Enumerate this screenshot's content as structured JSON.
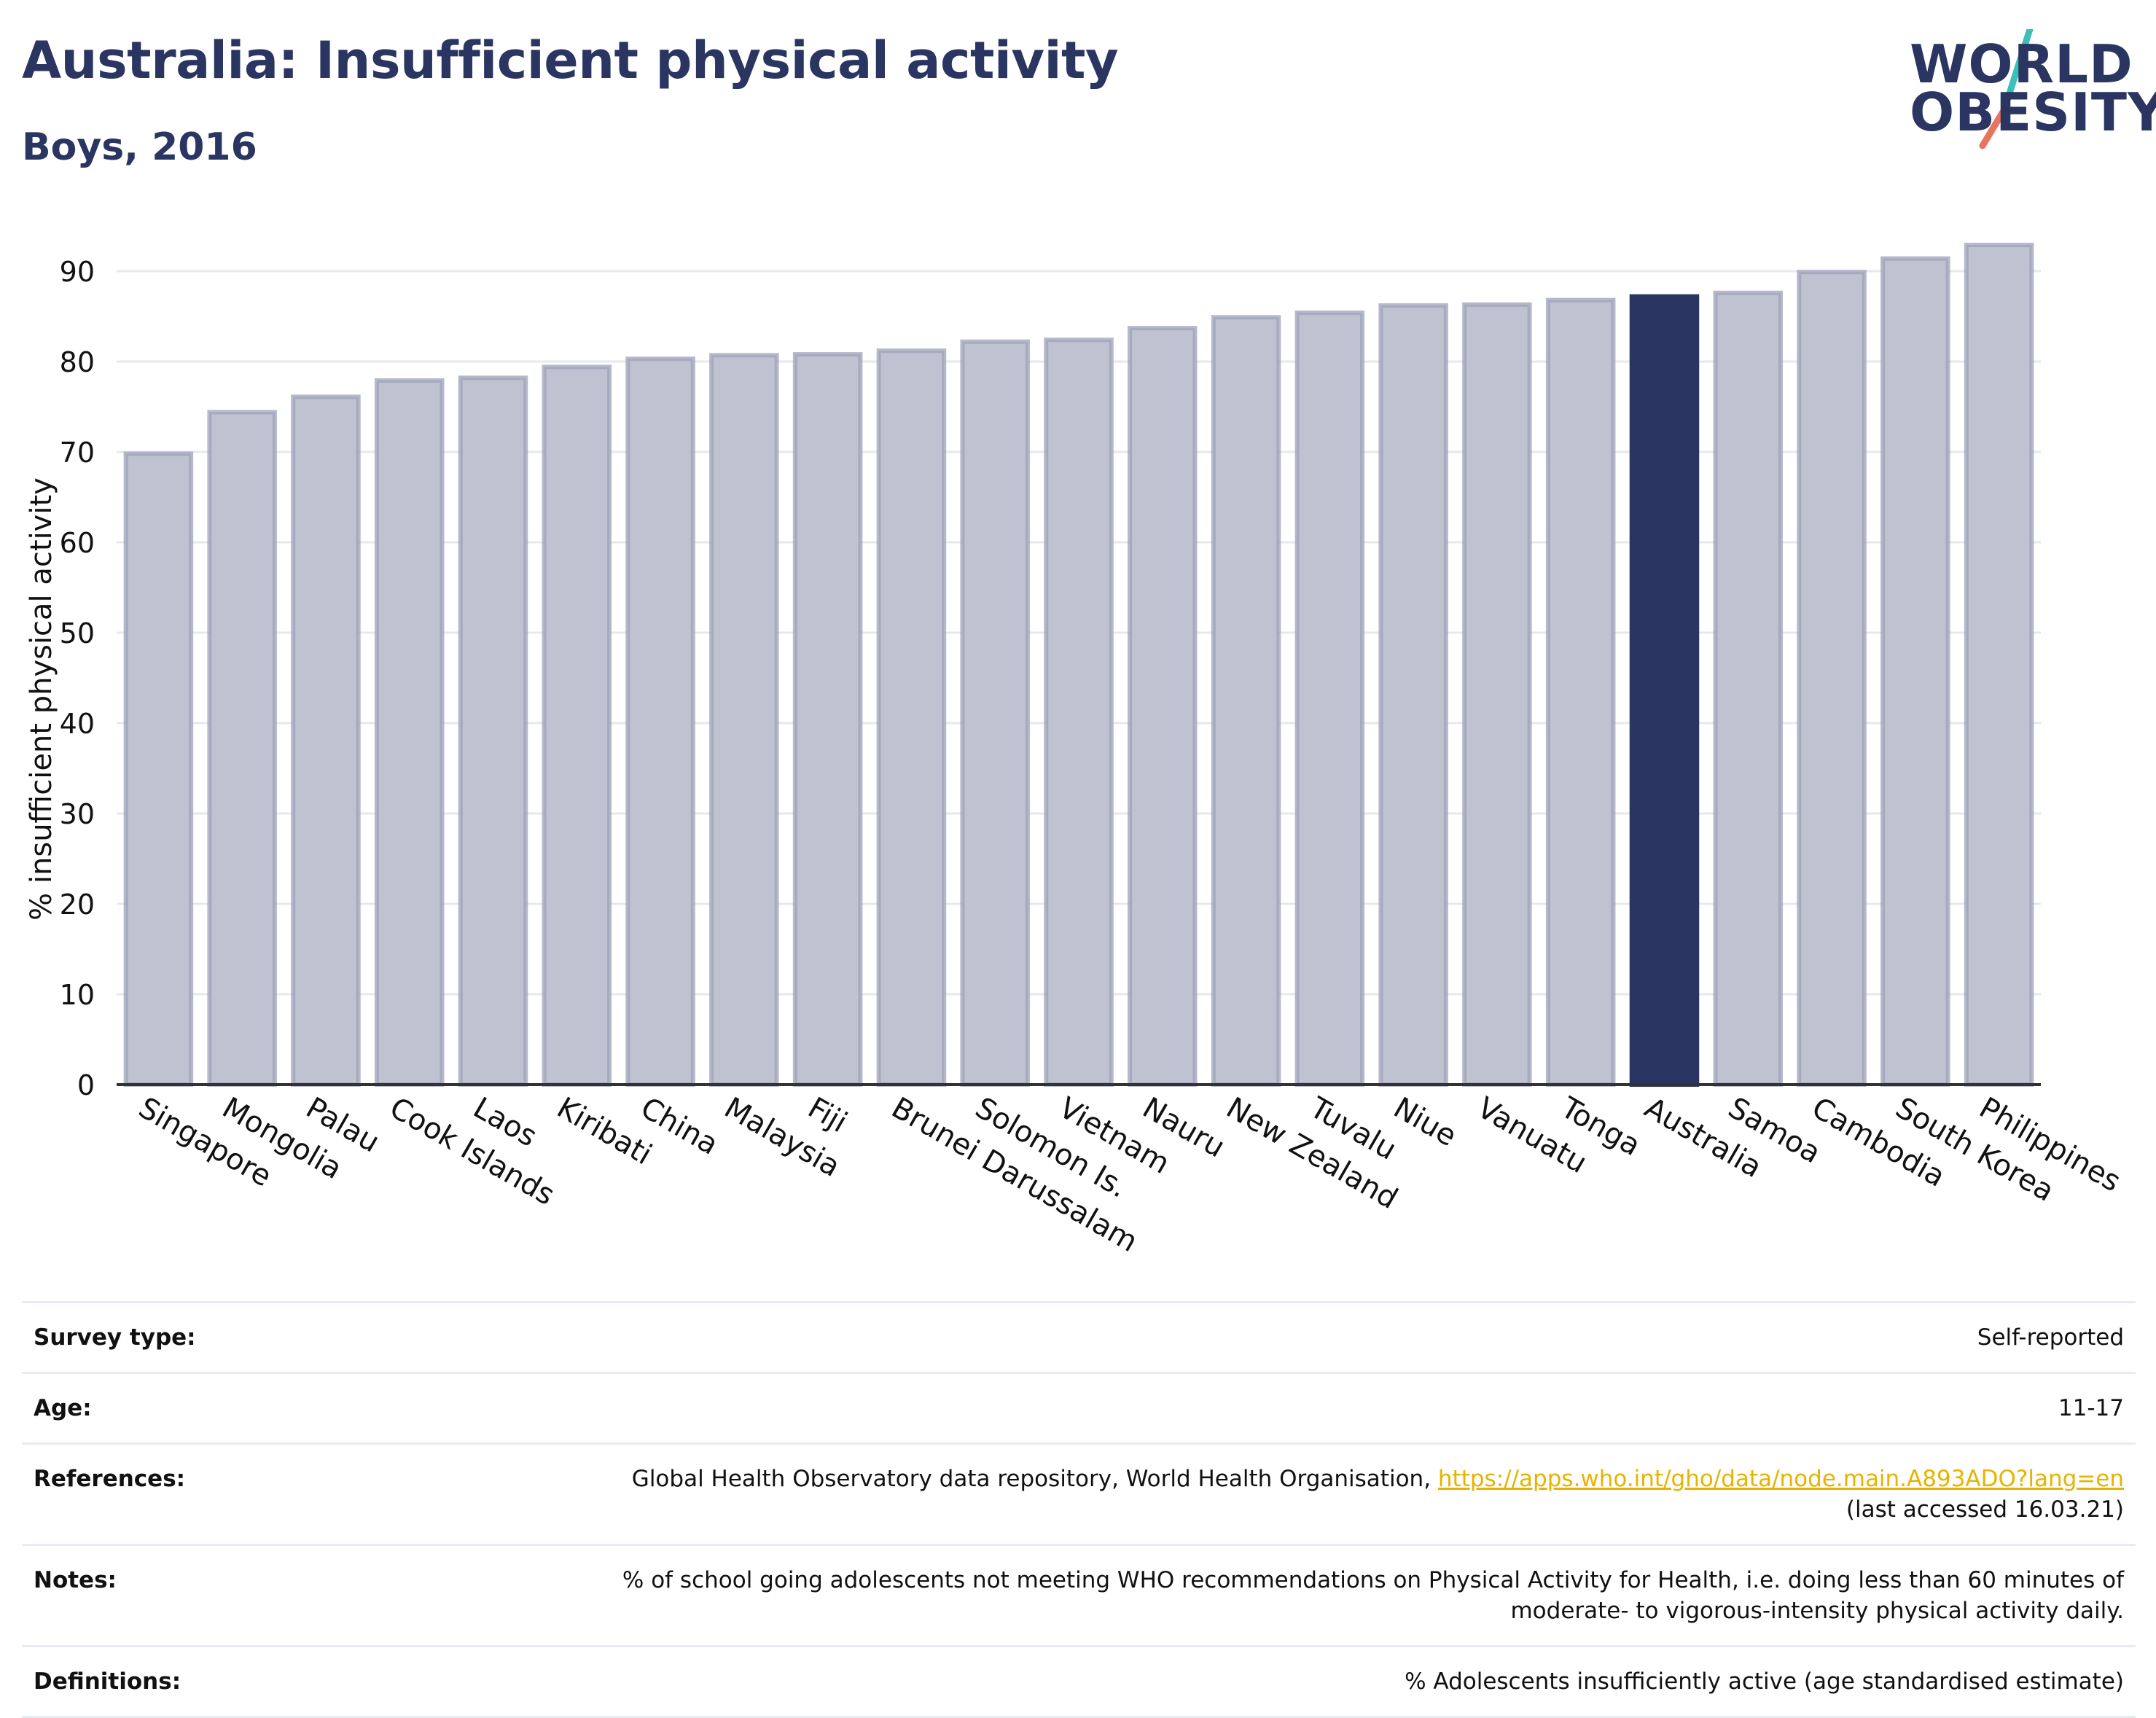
{
  "header": {
    "title": "Australia: Insufficient physical activity",
    "subtitle": "Boys, 2016"
  },
  "logo": {
    "line1": "WORLD",
    "line2": "OBESITY"
  },
  "chart_data": {
    "type": "bar",
    "title": "Australia: Insufficient physical activity",
    "subtitle": "Boys, 2016",
    "xlabel": "",
    "ylabel": "% insufficient physical activity",
    "ylim": [
      0,
      95
    ],
    "yticks": [
      0,
      10,
      20,
      30,
      40,
      50,
      60,
      70,
      80,
      90
    ],
    "grid": true,
    "highlight": "Australia",
    "colors": {
      "bar": "#bfc2d0",
      "bar_edge": "#9da2b8",
      "highlight": "#2a3561",
      "grid": "#e6e8ee"
    },
    "categories": [
      "Singapore",
      "Mongolia",
      "Palau",
      "Cook Islands",
      "Laos",
      "Kiribati",
      "China",
      "Malaysia",
      "Fiji",
      "Brunei Darussalam",
      "Solomon Is.",
      "Vietnam",
      "Nauru",
      "New Zealand",
      "Tuvalu",
      "Niue",
      "Vanuatu",
      "Tonga",
      "Australia",
      "Samoa",
      "Cambodia",
      "South Korea",
      "Philippines"
    ],
    "values": [
      69.8,
      74.4,
      76.1,
      77.9,
      78.2,
      79.4,
      80.3,
      80.7,
      80.8,
      81.2,
      82.2,
      82.4,
      83.7,
      84.9,
      85.4,
      86.2,
      86.3,
      86.8,
      87.2,
      87.6,
      89.9,
      91.4,
      92.9
    ]
  },
  "info": [
    {
      "label": "Survey type:",
      "value": "Self-reported"
    },
    {
      "label": "Age:",
      "value": "11-17"
    },
    {
      "label": "References:",
      "value": "Global Health Observatory data repository, World Health Organisation, ",
      "link": "https://apps.who.int/gho/data/node.main.A893ADO?lang=en",
      "value2": "(last accessed 16.03.21)"
    },
    {
      "label": "Notes:",
      "value": "% of school going adolescents not meeting WHO recommendations on Physical Activity for Health, i.e. doing less than 60 minutes of",
      "value2": "moderate- to vigorous-intensity physical activity daily."
    },
    {
      "label": "Definitions:",
      "value": "% Adolescents insufficiently active (age standardised estimate)"
    }
  ]
}
